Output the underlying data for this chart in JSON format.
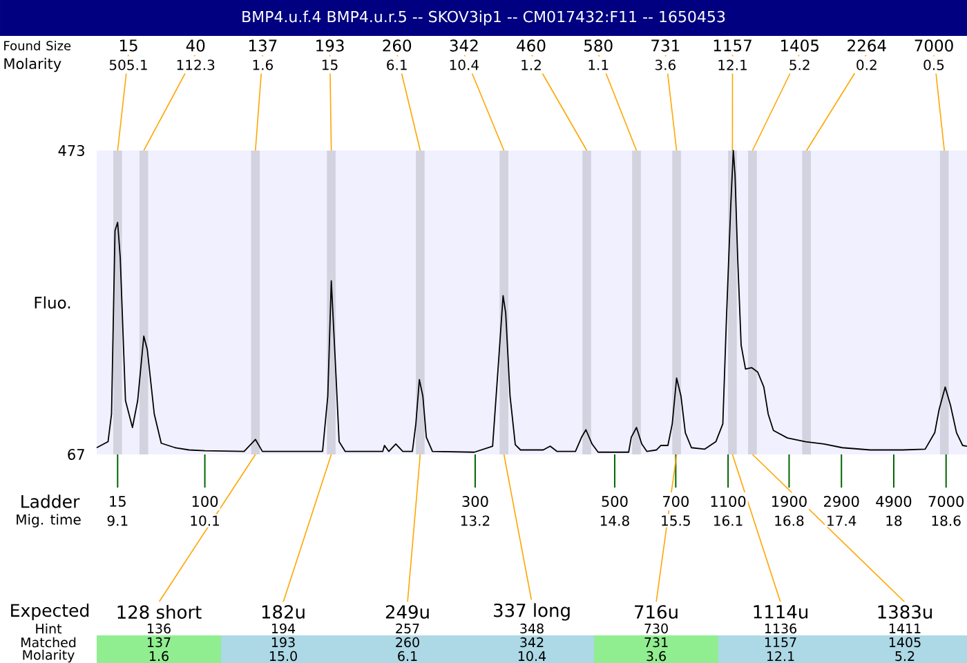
{
  "chart_data": [
    {
      "type": "line",
      "title": "BMP4.u.f.4  BMP4.u.r.5 -- SKOV3ip1 -- CM017432:F11 -- 1650453",
      "xlabel": "Mig. time",
      "ylabel": "Fluo.",
      "color": "#000000",
      "x": [
        8.86,
        8.99,
        9.03,
        9.07,
        9.1,
        9.13,
        9.19,
        9.27,
        9.33,
        9.4,
        9.44,
        9.52,
        9.6,
        9.76,
        9.92,
        10.1,
        10.55,
        10.68,
        10.76,
        11.45,
        11.51,
        11.55,
        11.6,
        11.64,
        11.71,
        12.14,
        12.16,
        12.21,
        12.29,
        12.37,
        12.48,
        12.52,
        12.56,
        12.6,
        12.64,
        12.71,
        13.19,
        13.4,
        13.47,
        13.52,
        13.55,
        13.6,
        13.66,
        13.72,
        13.98,
        14.06,
        14.14,
        14.35,
        14.42,
        14.47,
        14.54,
        14.61,
        14.8,
        14.96,
        14.99,
        15.05,
        15.11,
        15.17,
        15.28,
        15.33,
        15.41,
        15.46,
        15.51,
        15.56,
        15.61,
        15.68,
        15.83,
        15.96,
        16.04,
        16.08,
        16.13,
        16.16,
        16.18,
        16.21,
        16.25,
        16.3,
        16.37,
        16.44,
        16.51,
        16.56,
        16.62,
        16.78,
        16.99,
        17.2,
        17.41,
        17.73,
        18.0,
        18.1,
        18.36,
        18.47,
        18.52,
        18.59,
        18.65,
        18.72,
        18.79,
        18.84
      ],
      "values": [
        76,
        84,
        121,
        366,
        377,
        330,
        139,
        103,
        139,
        225,
        207,
        121,
        82,
        76,
        73,
        72,
        71,
        87,
        71,
        71,
        145,
        299,
        182,
        84,
        71,
        71,
        79,
        71,
        81,
        71,
        71,
        108,
        167,
        145,
        90,
        71,
        70,
        78,
        194,
        279,
        256,
        145,
        80,
        73,
        73,
        78,
        71,
        71,
        90,
        100,
        81,
        70,
        70,
        70,
        90,
        103,
        81,
        71,
        73,
        79,
        79,
        108,
        169,
        145,
        96,
        76,
        74,
        84,
        108,
        244,
        397,
        473,
        440,
        330,
        213,
        181,
        183,
        177,
        157,
        121,
        99,
        89,
        84,
        81,
        76,
        73,
        73,
        73,
        74,
        96,
        127,
        157,
        133,
        96,
        79,
        78
      ],
      "xlim": [
        8.86,
        18.84
      ],
      "ylim": [
        67,
        473
      ],
      "yticks": [
        67,
        473
      ],
      "xticks": [
        9.1,
        10.1,
        13.2,
        14.8,
        15.5,
        16.1,
        16.8,
        17.4,
        18,
        18.6
      ],
      "bands": [
        {
          "axis": "x",
          "from": 9.05,
          "to": 9.15,
          "color": "#d3d3e0"
        },
        {
          "axis": "x",
          "from": 9.35,
          "to": 9.45,
          "color": "#d3d3e0"
        },
        {
          "axis": "x",
          "from": 10.63,
          "to": 10.73,
          "color": "#d3d3e0"
        },
        {
          "axis": "x",
          "from": 11.5,
          "to": 11.6,
          "color": "#d3d3e0"
        },
        {
          "axis": "x",
          "from": 12.52,
          "to": 12.62,
          "color": "#d3d3e0"
        },
        {
          "axis": "x",
          "from": 13.48,
          "to": 13.58,
          "color": "#d3d3e0"
        },
        {
          "axis": "x",
          "from": 14.43,
          "to": 14.53,
          "color": "#d3d3e0"
        },
        {
          "axis": "x",
          "from": 15.0,
          "to": 15.1,
          "color": "#d3d3e0"
        },
        {
          "axis": "x",
          "from": 15.46,
          "to": 15.56,
          "color": "#d3d3e0"
        },
        {
          "axis": "x",
          "from": 16.1,
          "to": 16.2,
          "color": "#d3d3e0"
        },
        {
          "axis": "x",
          "from": 16.33,
          "to": 16.43,
          "color": "#d3d3e0"
        },
        {
          "axis": "x",
          "from": 16.95,
          "to": 17.05,
          "color": "#d3d3e0"
        },
        {
          "axis": "x",
          "from": 18.53,
          "to": 18.63,
          "color": "#d3d3e0"
        }
      ],
      "annotations": [
        "Found",
        "Size",
        "Molarity",
        {
          "text": "15",
          "x": 9.1,
          "y": 473
        },
        {
          "text": "505.1",
          "x": 9.1,
          "y": 473
        },
        {
          "text": "40",
          "x": 9.4,
          "y": 473
        },
        {
          "text": "112.3",
          "x": 9.4,
          "y": 473
        },
        {
          "text": "137",
          "x": 10.68,
          "y": 473
        },
        {
          "text": "1.6",
          "x": 10.68,
          "y": 473
        },
        {
          "text": "193",
          "x": 11.55,
          "y": 473
        },
        {
          "text": "15",
          "x": 11.55,
          "y": 473
        },
        {
          "text": "260",
          "x": 12.57,
          "y": 473
        },
        {
          "text": "6.1",
          "x": 12.57,
          "y": 473
        },
        {
          "text": "342",
          "x": 13.53,
          "y": 473
        },
        {
          "text": "10.4",
          "x": 13.53,
          "y": 473
        },
        {
          "text": "460",
          "x": 14.48,
          "y": 473
        },
        {
          "text": "1.2",
          "x": 14.48,
          "y": 473
        },
        {
          "text": "580",
          "x": 15.05,
          "y": 473
        },
        {
          "text": "1.1",
          "x": 15.05,
          "y": 473
        },
        {
          "text": "731",
          "x": 15.51,
          "y": 473
        },
        {
          "text": "3.6",
          "x": 15.51,
          "y": 473
        },
        {
          "text": "1157",
          "x": 16.15,
          "y": 473
        },
        {
          "text": "12.1",
          "x": 16.15,
          "y": 473
        },
        {
          "text": "1405",
          "x": 16.38,
          "y": 473
        },
        {
          "text": "5.2",
          "x": 16.38,
          "y": 473
        },
        {
          "text": "2264",
          "x": 17.0,
          "y": 473
        },
        {
          "text": "0.2",
          "x": 17.0,
          "y": 473
        },
        {
          "text": "7000",
          "x": 18.58,
          "y": 473
        },
        {
          "text": "0.5",
          "x": 18.58,
          "y": 473
        },
        "Ladder",
        {
          "text": "15",
          "x": 9.1
        },
        {
          "text": "100",
          "x": 10.1
        },
        {
          "text": "300",
          "x": 13.2
        },
        {
          "text": "500",
          "x": 14.8
        },
        {
          "text": "700",
          "x": 15.5
        },
        {
          "text": "1100",
          "x": 16.1
        },
        {
          "text": "1900",
          "x": 16.8
        },
        {
          "text": "2900",
          "x": 17.4
        },
        {
          "text": "4900",
          "x": 18
        },
        {
          "text": "7000",
          "x": 18.6
        },
        "Expected",
        {
          "text": "128 short",
          "x": 10.68,
          "y": 67
        },
        {
          "text": "182u",
          "x": 11.55,
          "y": 67
        },
        {
          "text": "249u",
          "x": 12.57,
          "y": 67
        },
        {
          "text": "337 long",
          "x": 13.53,
          "y": 67
        },
        {
          "text": "716u",
          "x": 15.51,
          "y": 67
        },
        {
          "text": "1114u",
          "x": 16.15,
          "y": 67
        },
        {
          "text": "1383u",
          "x": 16.38,
          "y": 67
        }
      ]
    },
    {
      "type": "other",
      "categories": [
        null,
        null,
        null,
        null,
        null,
        null,
        null
      ],
      "annotations": [
        "Hint",
        "136",
        "194",
        "257",
        "348",
        "730",
        "1136",
        "1411",
        "Matched",
        "137",
        "193",
        "260",
        "342",
        "731",
        "1157",
        "1405",
        "Molarity",
        "1.6",
        "15.0",
        "6.1",
        "10.4",
        "3.6",
        "12.1",
        "5.2"
      ],
      "colors": [
        null,
        null,
        null,
        null,
        null,
        null,
        null,
        "#90ee90",
        "#add8e6",
        "#add8e6",
        "#add8e6",
        "#90ee90",
        "#add8e6",
        "#add8e6",
        "#90ee90",
        "#add8e6",
        "#add8e6",
        "#add8e6",
        "#90ee90",
        "#add8e6",
        "#add8e6"
      ]
    }
  ]
}
